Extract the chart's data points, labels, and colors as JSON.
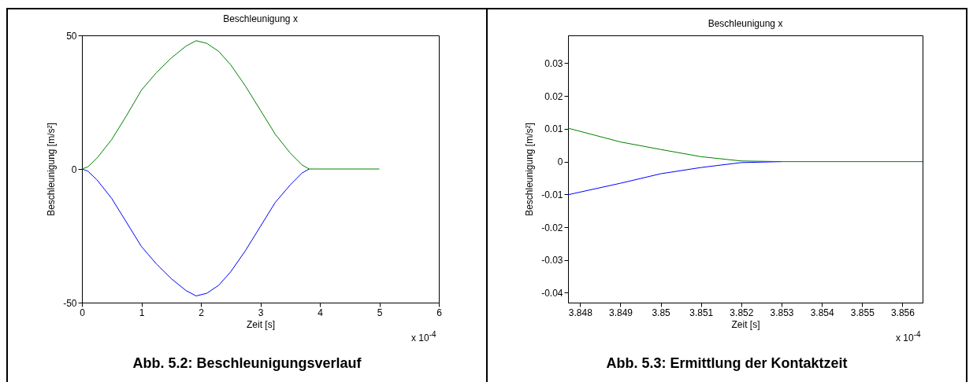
{
  "chart_data": [
    {
      "type": "line",
      "title": "Beschleunigung x",
      "xlabel": "Zeit [s]",
      "ylabel": "Beschleunigung [m/s²]",
      "annotations": [
        "x 10$^{-4}$",
        "Abb. 5.2: Beschleunigungsverlauf"
      ],
      "series": [
        {
          "color": "#0000ff",
          "x": [
            0,
            0.1,
            0.25,
            0.5,
            0.75,
            1,
            1.25,
            1.5,
            1.75,
            1.92,
            2.1,
            2.3,
            2.5,
            2.75,
            3,
            3.25,
            3.5,
            3.7,
            3.82
          ],
          "values": [
            0,
            -0.8,
            -4,
            -11,
            -20,
            -29,
            -35.5,
            -41,
            -45.5,
            -47.5,
            -46.5,
            -43.5,
            -38.5,
            -30.5,
            -21.5,
            -12.5,
            -6,
            -1.5,
            0
          ]
        },
        {
          "color": "#008000",
          "x": [
            0,
            0.1,
            0.25,
            0.5,
            0.75,
            1,
            1.25,
            1.5,
            1.75,
            1.92,
            2.1,
            2.3,
            2.5,
            2.75,
            3,
            3.25,
            3.5,
            3.7,
            3.82,
            5
          ],
          "values": [
            0,
            0.8,
            4,
            11,
            20,
            29.5,
            36,
            41.5,
            46,
            48,
            47,
            44,
            39,
            31,
            22,
            13,
            6,
            1.5,
            0,
            0
          ]
        }
      ],
      "xlim": [
        0,
        6
      ],
      "xticks": [
        0,
        1,
        2,
        3,
        4,
        5,
        6
      ],
      "ylim": [
        -50,
        50
      ],
      "yticks": [
        -50,
        0,
        50
      ],
      "grid": false,
      "line_style": "solid"
    },
    {
      "type": "line",
      "title": "Beschleunigung x",
      "xlabel": "Zeit [s]",
      "ylabel": "Beschleunigung [m/s²]",
      "annotations": [
        "x 10$^{-4}$",
        "Abb. 5.3: Ermittlung der Kontaktzeit"
      ],
      "series": [
        {
          "color": "#0000ff",
          "x": [
            3.8477,
            3.849,
            3.85,
            3.851,
            3.852,
            3.853
          ],
          "values": [
            -0.0101,
            -0.0066,
            -0.0037,
            -0.0018,
            -0.0003,
            0
          ]
        },
        {
          "color": "#008000",
          "x": [
            3.8477,
            3.849,
            3.85,
            3.851,
            3.852,
            3.853,
            3.8565
          ],
          "values": [
            0.0102,
            0.006,
            0.0037,
            0.0015,
            0.0002,
            0,
            0
          ]
        }
      ],
      "xlim": [
        3.8477,
        3.8565
      ],
      "xticks": [
        3.848,
        3.849,
        3.85,
        3.851,
        3.852,
        3.853,
        3.854,
        3.855,
        3.856
      ],
      "ylim": [
        -0.043,
        0.0385
      ],
      "yticks": [
        -0.04,
        -0.03,
        -0.02,
        -0.01,
        0,
        0.01,
        0.02,
        0.03
      ],
      "grid": false,
      "line_style": "solid"
    }
  ]
}
